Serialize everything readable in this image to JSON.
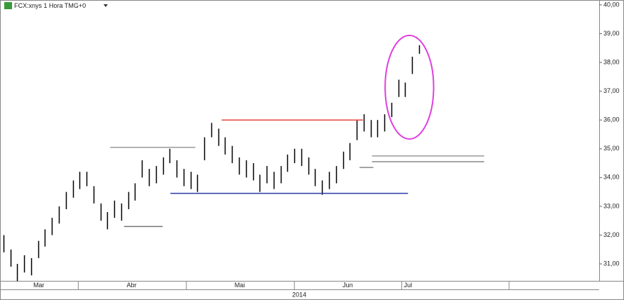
{
  "chart_data": {
    "type": "hilo",
    "title": "FCX:xnys 1 Hora TMG+0",
    "year_label": "2014",
    "color": "#000000",
    "xlim": [
      -0.5,
      86
    ],
    "ylim": [
      30.41,
      40.17
    ],
    "yticks": [
      {
        "value": 31,
        "label": "31,00"
      },
      {
        "value": 32,
        "label": "32,00"
      },
      {
        "value": 33,
        "label": "33,00"
      },
      {
        "value": 34,
        "label": "34,00"
      },
      {
        "value": 35,
        "label": "35,00"
      },
      {
        "value": 36,
        "label": "36,00"
      },
      {
        "value": 37,
        "label": "37,00"
      },
      {
        "value": 38,
        "label": "38,00"
      },
      {
        "value": 39,
        "label": "39,00"
      },
      {
        "value": 40,
        "label": "40,00"
      }
    ],
    "xticks": [
      {
        "value": 5.1,
        "label": "Mar"
      },
      {
        "value": 18.5,
        "label": "Abr"
      },
      {
        "value": 34.1,
        "label": "Mai"
      },
      {
        "value": 49.7,
        "label": "Jun"
      },
      {
        "value": 58.4,
        "label": "Jul"
      }
    ],
    "xdividers": [
      10.8,
      26.4,
      42.0,
      57.5,
      73.0
    ],
    "high": [
      32.0,
      31.5,
      31.0,
      31.3,
      31.2,
      31.8,
      32.2,
      32.6,
      33.0,
      33.5,
      33.9,
      34.2,
      34.2,
      33.7,
      33.1,
      32.8,
      33.2,
      33.1,
      33.5,
      33.8,
      34.6,
      34.3,
      34.4,
      34.7,
      35.0,
      34.6,
      34.3,
      34.2,
      34.1,
      35.4,
      35.9,
      35.7,
      35.4,
      35.1,
      34.7,
      34.6,
      34.5,
      34.1,
      34.4,
      34.2,
      34.4,
      34.8,
      35.0,
      35.0,
      34.7,
      34.3,
      33.9,
      34.2,
      34.4,
      34.9,
      35.2,
      36.0,
      36.2,
      36.0,
      36.0,
      36.2,
      36.6,
      37.4,
      37.3,
      38.2,
      38.6
    ],
    "low": [
      31.4,
      30.9,
      30.4,
      30.7,
      30.6,
      31.2,
      31.6,
      32.0,
      32.4,
      32.9,
      33.3,
      33.6,
      33.7,
      33.1,
      32.5,
      32.2,
      32.6,
      32.5,
      32.9,
      33.2,
      34.0,
      33.7,
      33.8,
      34.1,
      34.5,
      34.0,
      33.7,
      33.6,
      33.5,
      34.6,
      35.4,
      35.1,
      34.8,
      34.5,
      34.1,
      34.0,
      33.9,
      33.5,
      33.8,
      33.6,
      33.8,
      34.2,
      34.5,
      34.4,
      34.1,
      33.7,
      33.4,
      33.6,
      33.8,
      34.3,
      34.6,
      35.3,
      35.6,
      35.4,
      35.4,
      35.6,
      36.1,
      36.8,
      36.8,
      37.6,
      38.3
    ],
    "lines": [
      {
        "y": 36.0,
        "x": [
          31.5,
          51.9
        ],
        "color": "#e8473f"
      },
      {
        "y": 33.45,
        "x": [
          24.1,
          58.4
        ],
        "color": "#2a3aa8"
      },
      {
        "y": 35.05,
        "x": [
          15.4,
          27.7
        ],
        "color": "#999999"
      },
      {
        "y": 32.3,
        "x": [
          17.4,
          23.0
        ],
        "color": "#777777"
      },
      {
        "y": 34.75,
        "x": [
          53.2,
          69.4
        ],
        "color": "#999999"
      },
      {
        "y": 34.55,
        "x": [
          53.2,
          69.4
        ],
        "color": "#888888"
      },
      {
        "y": 34.35,
        "x": [
          51.4,
          53.4
        ],
        "color": "#888888"
      }
    ],
    "ellipse": {
      "cx": 58.6,
      "cy": 37.14,
      "rx": 3.5,
      "ry": 1.8,
      "color": "#e040e0"
    }
  }
}
